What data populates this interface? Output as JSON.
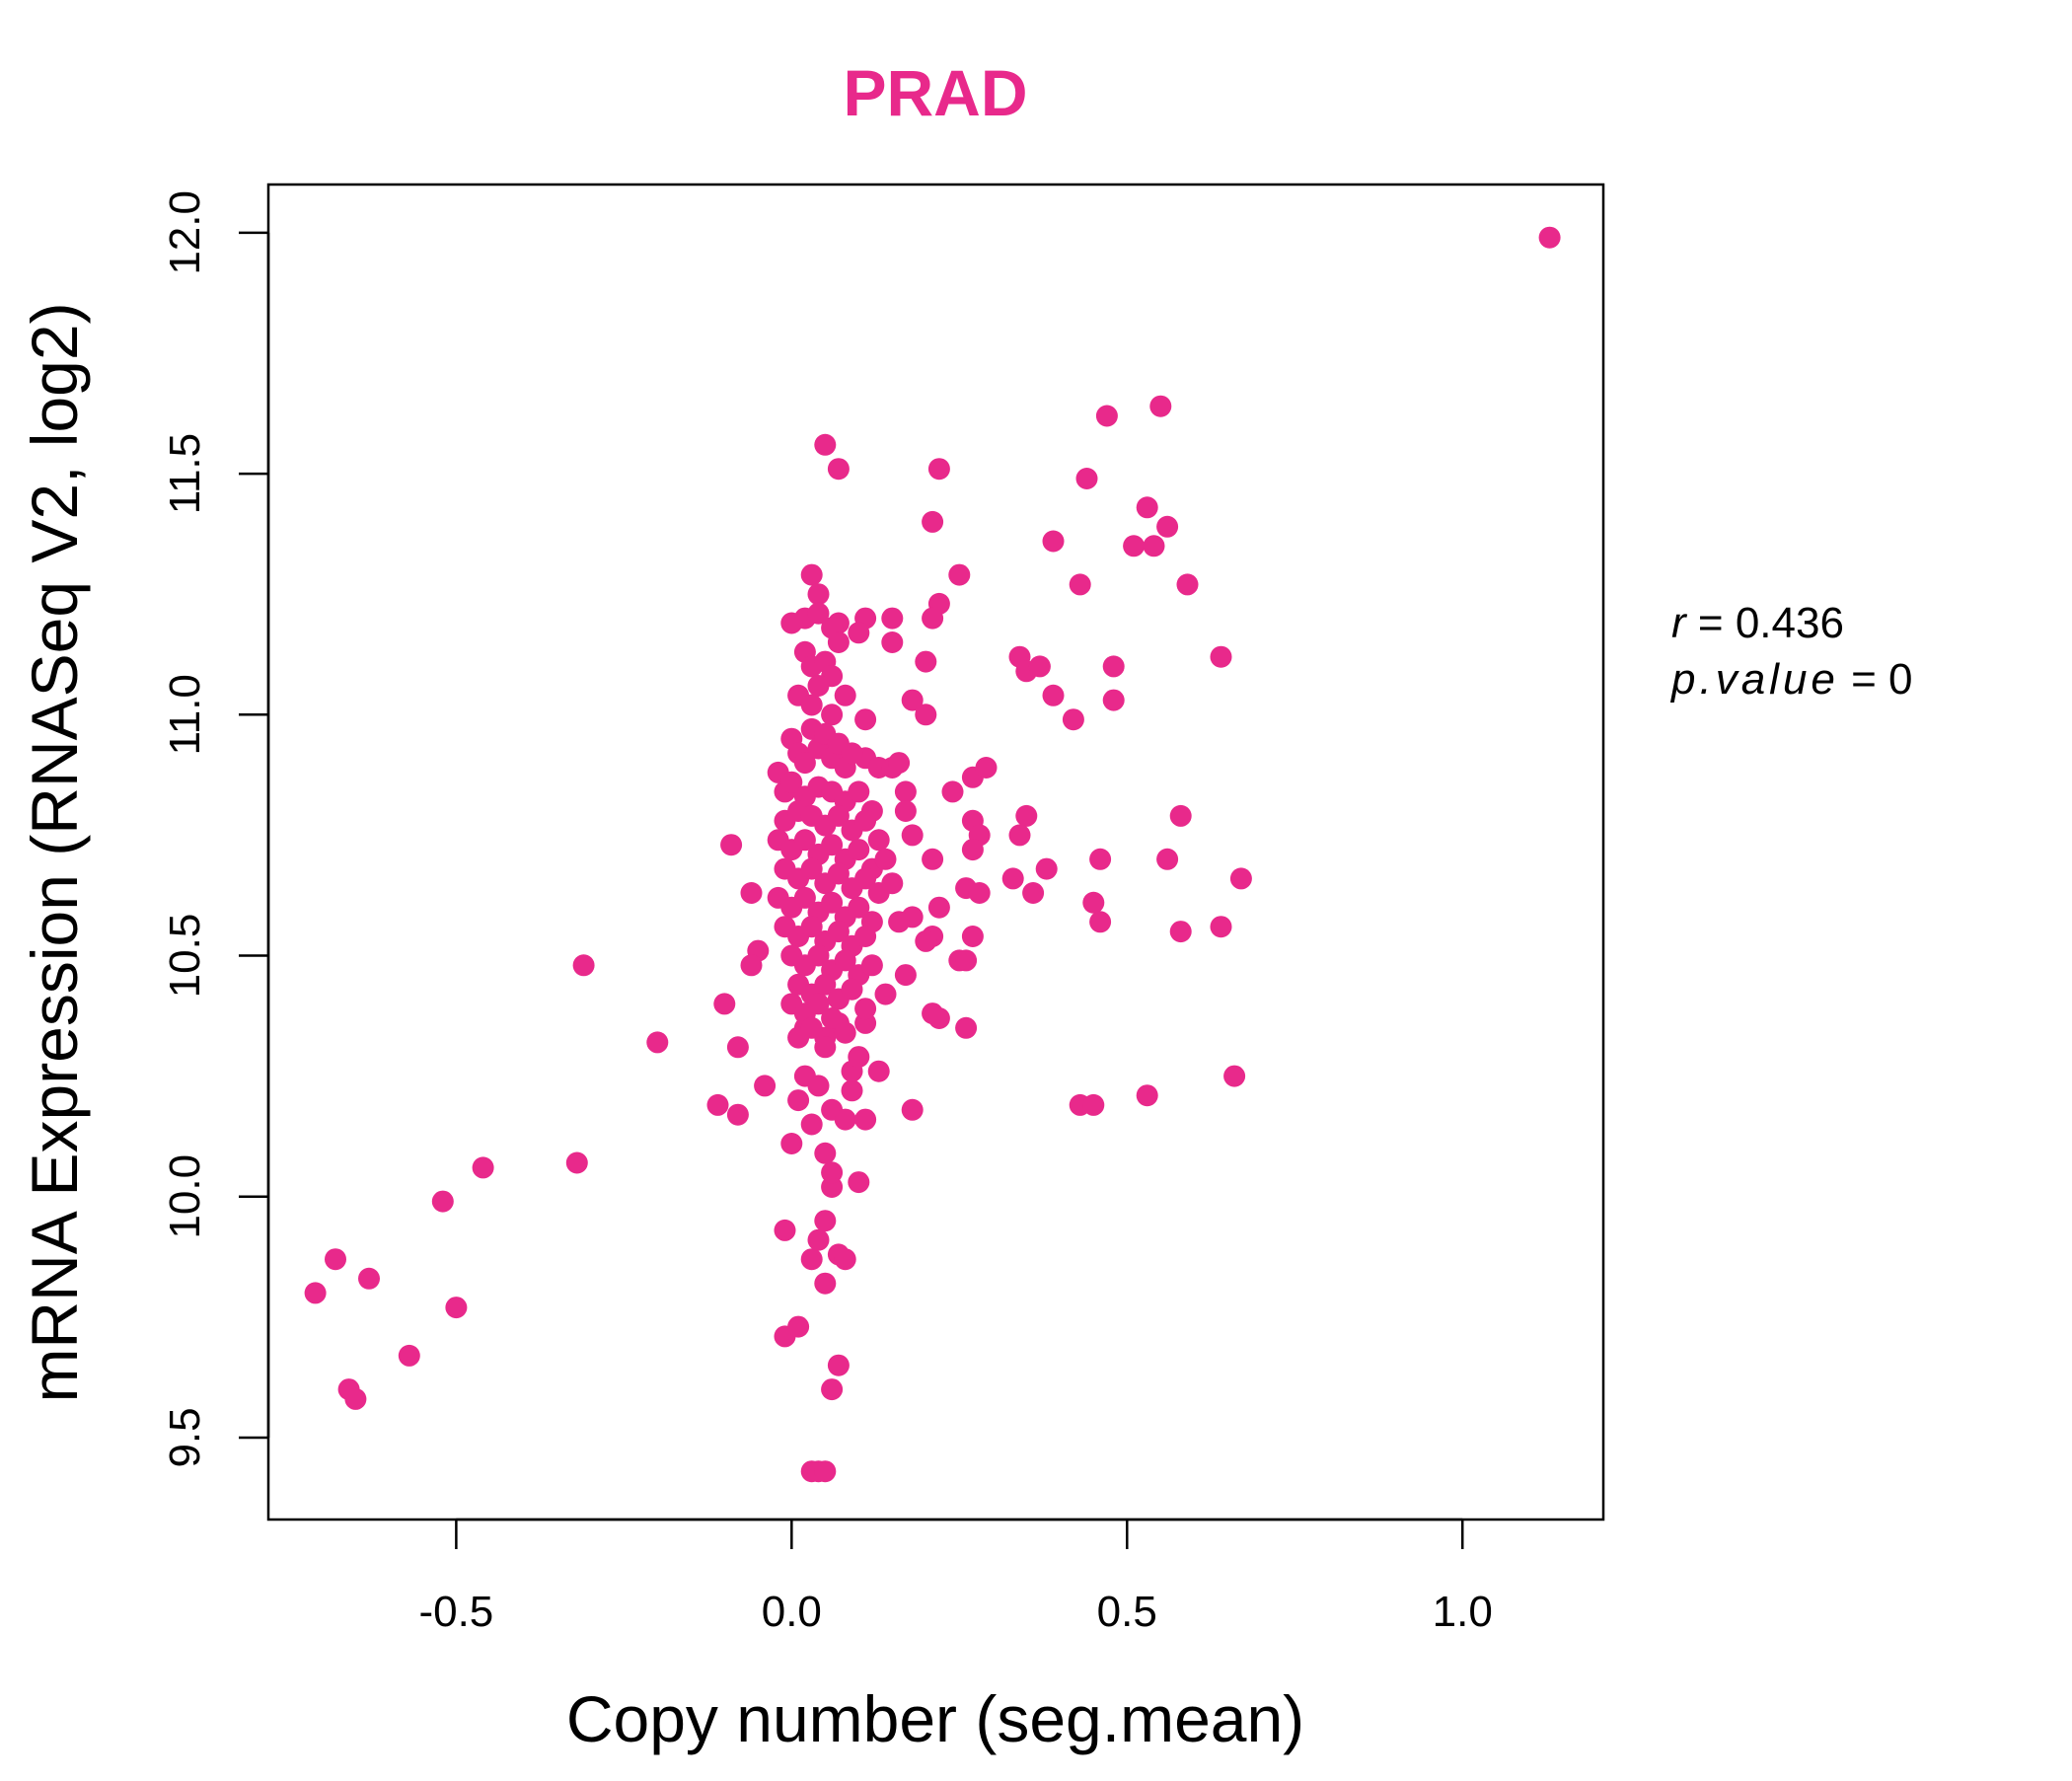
{
  "chart_data": {
    "type": "scatter",
    "title": "PRAD",
    "xlabel": "Copy number (seg.mean)",
    "ylabel": "mRNA Expression (RNASeq V2, log2)",
    "xlim": [
      -0.78,
      1.21
    ],
    "ylim": [
      9.33,
      12.1
    ],
    "xticks": [
      -0.5,
      0.0,
      0.5,
      1.0
    ],
    "xtick_labels": [
      "-0.5",
      "0.0",
      "0.5",
      "1.0"
    ],
    "yticks": [
      9.5,
      10.0,
      10.5,
      11.0,
      11.5,
      12.0
    ],
    "ytick_labels": [
      "9.5",
      "10.0",
      "10.5",
      "11.0",
      "11.5",
      "12.0"
    ],
    "grid": false,
    "color": "#e8298b",
    "stats": {
      "r_label": "r",
      "r_value": "0.436",
      "p_label": "p.value",
      "p_value": "0"
    },
    "points": [
      [
        1.13,
        11.99
      ],
      [
        0.55,
        11.64
      ],
      [
        0.47,
        11.62
      ],
      [
        0.44,
        11.49
      ],
      [
        0.53,
        11.43
      ],
      [
        0.56,
        11.39
      ],
      [
        0.51,
        11.35
      ],
      [
        0.54,
        11.35
      ],
      [
        0.59,
        11.27
      ],
      [
        0.43,
        11.27
      ],
      [
        0.39,
        11.36
      ],
      [
        0.64,
        11.12
      ],
      [
        0.48,
        11.1
      ],
      [
        0.34,
        11.12
      ],
      [
        0.35,
        11.09
      ],
      [
        0.37,
        11.1
      ],
      [
        0.39,
        11.04
      ],
      [
        0.42,
        10.99
      ],
      [
        0.48,
        11.03
      ],
      [
        0.35,
        10.79
      ],
      [
        0.58,
        10.79
      ],
      [
        0.34,
        10.75
      ],
      [
        0.46,
        10.7
      ],
      [
        0.56,
        10.7
      ],
      [
        0.38,
        10.68
      ],
      [
        0.33,
        10.66
      ],
      [
        0.36,
        10.63
      ],
      [
        0.67,
        10.66
      ],
      [
        0.45,
        10.61
      ],
      [
        0.46,
        10.57
      ],
      [
        0.58,
        10.55
      ],
      [
        0.64,
        10.56
      ],
      [
        0.43,
        10.19
      ],
      [
        0.45,
        10.19
      ],
      [
        0.53,
        10.21
      ],
      [
        0.66,
        10.25
      ],
      [
        0.05,
        11.56
      ],
      [
        0.07,
        11.51
      ],
      [
        0.22,
        11.51
      ],
      [
        0.21,
        11.4
      ],
      [
        0.25,
        11.29
      ],
      [
        0.22,
        11.23
      ],
      [
        0.21,
        11.2
      ],
      [
        0.15,
        11.2
      ],
      [
        0.11,
        11.2
      ],
      [
        0.07,
        11.19
      ],
      [
        0.1,
        11.17
      ],
      [
        0.15,
        11.15
      ],
      [
        0.2,
        11.11
      ],
      [
        0.18,
        11.03
      ],
      [
        0.2,
        11.0
      ],
      [
        0.11,
        10.91
      ],
      [
        0.13,
        10.89
      ],
      [
        0.15,
        10.89
      ],
      [
        0.16,
        10.9
      ],
      [
        0.27,
        10.87
      ],
      [
        0.29,
        10.89
      ],
      [
        0.24,
        10.84
      ],
      [
        0.17,
        10.84
      ],
      [
        0.17,
        10.8
      ],
      [
        0.27,
        10.78
      ],
      [
        0.28,
        10.75
      ],
      [
        0.18,
        10.75
      ],
      [
        0.21,
        10.7
      ],
      [
        0.27,
        10.72
      ],
      [
        0.26,
        10.64
      ],
      [
        0.28,
        10.63
      ],
      [
        0.22,
        10.6
      ],
      [
        0.18,
        10.58
      ],
      [
        0.16,
        10.57
      ],
      [
        0.21,
        10.54
      ],
      [
        0.2,
        10.53
      ],
      [
        0.27,
        10.54
      ],
      [
        0.25,
        10.49
      ],
      [
        0.26,
        10.49
      ],
      [
        0.17,
        10.46
      ],
      [
        0.14,
        10.42
      ],
      [
        0.21,
        10.38
      ],
      [
        0.22,
        10.37
      ],
      [
        0.26,
        10.35
      ],
      [
        0.13,
        10.26
      ],
      [
        0.18,
        10.18
      ],
      [
        0.11,
        10.36
      ],
      [
        0.11,
        10.39
      ],
      [
        -0.09,
        10.73
      ],
      [
        -0.06,
        10.63
      ],
      [
        -0.05,
        10.51
      ],
      [
        -0.06,
        10.48
      ],
      [
        -0.1,
        10.4
      ],
      [
        -0.08,
        10.31
      ],
      [
        -0.04,
        10.23
      ],
      [
        -0.11,
        10.19
      ],
      [
        -0.08,
        10.17
      ],
      [
        -0.2,
        10.32
      ],
      [
        -0.31,
        10.48
      ],
      [
        -0.32,
        10.07
      ],
      [
        -0.46,
        10.06
      ],
      [
        -0.52,
        9.99
      ],
      [
        -0.5,
        9.77
      ],
      [
        -0.57,
        9.67
      ],
      [
        -0.63,
        9.83
      ],
      [
        -0.68,
        9.87
      ],
      [
        -0.71,
        9.8
      ],
      [
        -0.66,
        9.6
      ],
      [
        -0.65,
        9.58
      ],
      [
        0.0,
        10.11
      ],
      [
        -0.01,
        9.93
      ],
      [
        -0.01,
        9.71
      ],
      [
        0.01,
        9.73
      ],
      [
        0.03,
        9.87
      ],
      [
        0.04,
        9.91
      ],
      [
        0.05,
        9.95
      ],
      [
        0.05,
        9.82
      ],
      [
        0.06,
        10.02
      ],
      [
        0.06,
        10.05
      ],
      [
        0.07,
        9.65
      ],
      [
        0.06,
        9.6
      ],
      [
        0.07,
        9.88
      ],
      [
        0.08,
        9.87
      ],
      [
        0.03,
        9.43
      ],
      [
        0.04,
        9.43
      ],
      [
        0.05,
        9.43
      ],
      [
        0.1,
        10.03
      ],
      [
        0.05,
        10.09
      ],
      [
        0.03,
        10.15
      ],
      [
        0.06,
        10.18
      ],
      [
        0.08,
        10.16
      ],
      [
        0.11,
        10.16
      ],
      [
        0.01,
        10.2
      ],
      [
        0.02,
        10.25
      ],
      [
        0.04,
        10.23
      ],
      [
        0.09,
        10.22
      ],
      [
        0.09,
        10.26
      ],
      [
        0.1,
        10.29
      ],
      [
        0.02,
        10.35
      ],
      [
        0.05,
        10.33
      ],
      [
        0.07,
        10.36
      ],
      [
        0.03,
        11.29
      ],
      [
        0.04,
        11.25
      ],
      [
        0.02,
        11.2
      ],
      [
        0.06,
        11.18
      ],
      [
        0.0,
        11.19
      ],
      [
        0.04,
        11.21
      ],
      [
        0.07,
        11.15
      ],
      [
        0.02,
        11.13
      ],
      [
        0.03,
        11.1
      ],
      [
        0.05,
        11.11
      ],
      [
        0.06,
        11.08
      ],
      [
        0.04,
        11.06
      ],
      [
        0.08,
        11.04
      ],
      [
        0.01,
        11.04
      ],
      [
        0.03,
        11.02
      ],
      [
        0.06,
        11.0
      ],
      [
        0.11,
        10.99
      ]
    ],
    "dense_cluster": {
      "note": "core cluster near x=0.05, y=10.7",
      "points": [
        [
          0.0,
          10.95
        ],
        [
          0.01,
          10.92
        ],
        [
          0.02,
          10.9
        ],
        [
          0.03,
          10.97
        ],
        [
          0.04,
          10.93
        ],
        [
          0.05,
          10.96
        ],
        [
          0.06,
          10.91
        ],
        [
          0.07,
          10.94
        ],
        [
          0.08,
          10.89
        ],
        [
          0.09,
          10.92
        ],
        [
          -0.02,
          10.88
        ],
        [
          -0.01,
          10.84
        ],
        [
          0.0,
          10.86
        ],
        [
          0.02,
          10.83
        ],
        [
          0.04,
          10.85
        ],
        [
          0.06,
          10.84
        ],
        [
          0.08,
          10.82
        ],
        [
          0.1,
          10.84
        ],
        [
          0.12,
          10.8
        ],
        [
          -0.01,
          10.78
        ],
        [
          0.01,
          10.8
        ],
        [
          0.03,
          10.79
        ],
        [
          0.05,
          10.77
        ],
        [
          0.07,
          10.79
        ],
        [
          0.09,
          10.76
        ],
        [
          0.11,
          10.78
        ],
        [
          0.13,
          10.74
        ],
        [
          -0.02,
          10.74
        ],
        [
          0.0,
          10.72
        ],
        [
          0.02,
          10.74
        ],
        [
          0.04,
          10.71
        ],
        [
          0.06,
          10.73
        ],
        [
          0.08,
          10.7
        ],
        [
          0.1,
          10.72
        ],
        [
          0.12,
          10.68
        ],
        [
          0.14,
          10.7
        ],
        [
          -0.01,
          10.68
        ],
        [
          0.01,
          10.66
        ],
        [
          0.03,
          10.68
        ],
        [
          0.05,
          10.65
        ],
        [
          0.07,
          10.67
        ],
        [
          0.09,
          10.64
        ],
        [
          0.11,
          10.66
        ],
        [
          0.13,
          10.63
        ],
        [
          0.15,
          10.65
        ],
        [
          -0.02,
          10.62
        ],
        [
          0.0,
          10.6
        ],
        [
          0.02,
          10.62
        ],
        [
          0.04,
          10.59
        ],
        [
          0.06,
          10.61
        ],
        [
          0.08,
          10.58
        ],
        [
          0.1,
          10.6
        ],
        [
          0.12,
          10.57
        ],
        [
          -0.01,
          10.56
        ],
        [
          0.01,
          10.54
        ],
        [
          0.03,
          10.56
        ],
        [
          0.05,
          10.53
        ],
        [
          0.07,
          10.55
        ],
        [
          0.09,
          10.52
        ],
        [
          0.11,
          10.54
        ],
        [
          0.0,
          10.5
        ],
        [
          0.02,
          10.48
        ],
        [
          0.04,
          10.5
        ],
        [
          0.06,
          10.47
        ],
        [
          0.08,
          10.49
        ],
        [
          0.1,
          10.46
        ],
        [
          0.12,
          10.48
        ],
        [
          0.01,
          10.44
        ],
        [
          0.03,
          10.42
        ],
        [
          0.05,
          10.44
        ],
        [
          0.07,
          10.41
        ],
        [
          0.09,
          10.43
        ],
        [
          0.0,
          10.4
        ],
        [
          0.02,
          10.38
        ],
        [
          0.04,
          10.4
        ],
        [
          0.06,
          10.37
        ],
        [
          0.01,
          10.33
        ],
        [
          0.03,
          10.35
        ],
        [
          0.05,
          10.31
        ],
        [
          0.08,
          10.34
        ]
      ]
    }
  }
}
